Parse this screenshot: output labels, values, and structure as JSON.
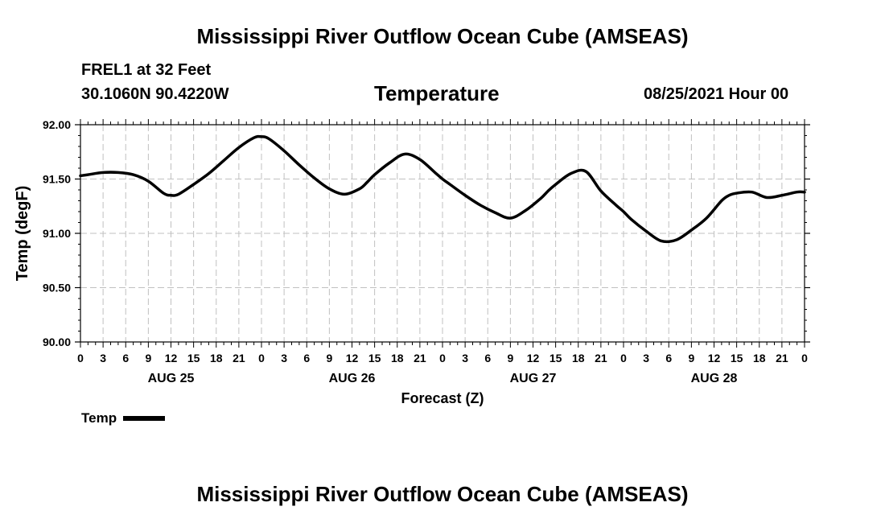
{
  "header": {
    "title": "Mississippi River Outflow Ocean Cube (AMSEAS)",
    "station": "FREL1 at 32 Feet",
    "coords": "30.1060N  90.4220W",
    "variable": "Temperature",
    "datetime": "08/25/2021 Hour 00"
  },
  "footer": {
    "title": "Mississippi River Outflow Ocean Cube (AMSEAS)"
  },
  "chart_data": {
    "type": "line",
    "title": "Temperature",
    "xlabel": "Forecast (Z)",
    "ylabel": "Temp (degF)",
    "xlim": [
      0,
      96
    ],
    "ylim": [
      90.0,
      92.0
    ],
    "grid": true,
    "y_ticks": [
      "90.00",
      "90.50",
      "91.00",
      "91.50",
      "92.00"
    ],
    "y_tick_values": [
      90.0,
      90.5,
      91.0,
      91.5,
      92.0
    ],
    "x_tick_labels": [
      "0",
      "3",
      "6",
      "9",
      "12",
      "15",
      "18",
      "21",
      "0",
      "3",
      "6",
      "9",
      "12",
      "15",
      "18",
      "21",
      "0",
      "3",
      "6",
      "9",
      "12",
      "15",
      "18",
      "21",
      "0",
      "3",
      "6",
      "9",
      "12",
      "15",
      "18",
      "21",
      "0"
    ],
    "day_labels": [
      "AUG 25",
      "AUG 26",
      "AUG 27",
      "AUG 28"
    ],
    "legend": {
      "label": "Temp",
      "position": "bottom-left"
    },
    "series": [
      {
        "name": "Temp",
        "color": "#000000",
        "x": [
          0,
          1,
          3,
          5,
          7,
          9,
          11,
          12,
          13,
          15,
          17,
          19,
          21,
          23,
          24,
          25,
          27,
          29,
          31,
          33,
          35,
          37,
          38,
          39,
          41,
          43,
          45,
          47,
          48,
          49,
          51,
          53,
          55,
          57,
          59,
          61,
          62,
          63,
          65,
          67,
          69,
          71,
          72,
          73,
          75,
          77,
          79,
          81,
          83,
          85,
          86,
          87,
          89,
          91,
          93,
          95,
          96
        ],
        "y": [
          91.53,
          91.54,
          91.56,
          91.56,
          91.54,
          91.48,
          91.37,
          91.35,
          91.36,
          91.45,
          91.55,
          91.67,
          91.79,
          91.88,
          91.89,
          91.87,
          91.76,
          91.63,
          91.51,
          91.41,
          91.36,
          91.41,
          91.47,
          91.54,
          91.65,
          91.73,
          91.68,
          91.56,
          91.5,
          91.45,
          91.35,
          91.26,
          91.19,
          91.14,
          91.21,
          91.32,
          91.39,
          91.45,
          91.55,
          91.57,
          91.39,
          91.26,
          91.2,
          91.13,
          91.02,
          90.93,
          90.94,
          91.03,
          91.14,
          91.3,
          91.35,
          91.37,
          91.38,
          91.33,
          91.35,
          91.38,
          91.38
        ]
      }
    ]
  }
}
